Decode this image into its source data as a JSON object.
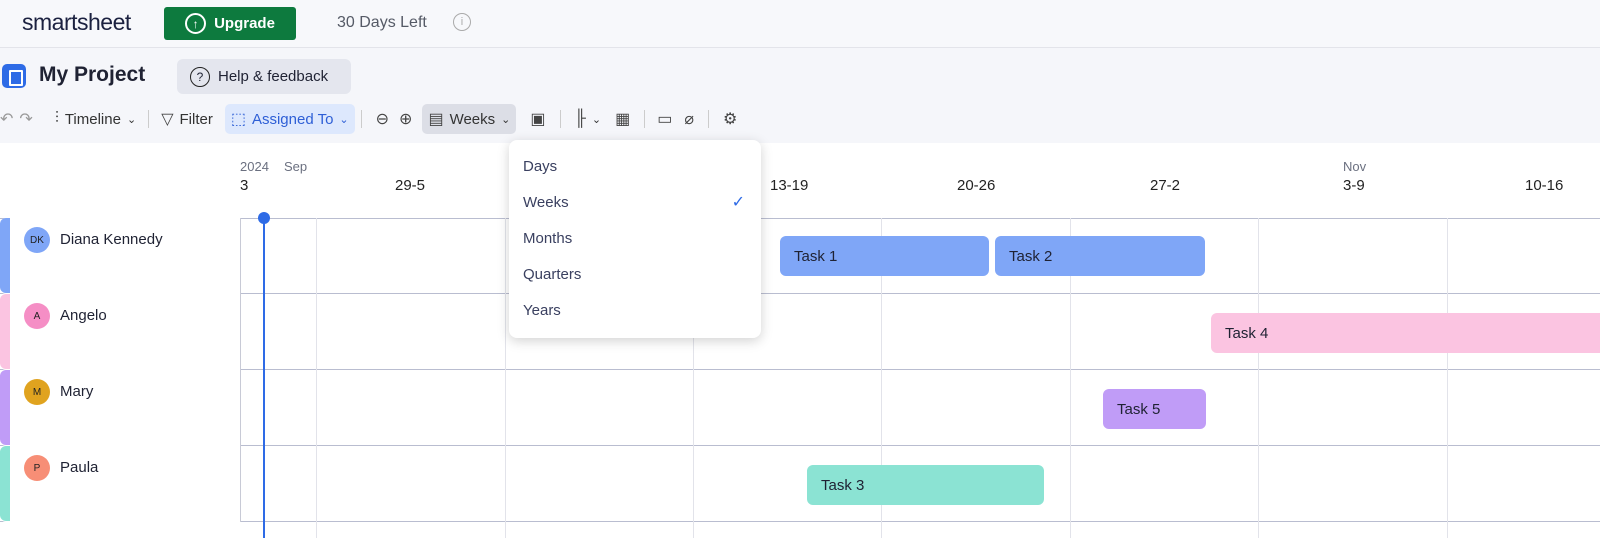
{
  "topbar": {
    "logo": "smartsheet",
    "upgrade": "Upgrade",
    "trial": "30 Days Left"
  },
  "project": {
    "title": "My Project",
    "help": "Help & feedback"
  },
  "toolbar": {
    "view": "Timeline",
    "filter": "Filter",
    "group": "Assigned To",
    "scale": "Weeks"
  },
  "timeline": {
    "year": "2024",
    "month_sep": "Sep",
    "month_nov": "Nov",
    "weeks": [
      "3",
      "29-5",
      "13-19",
      "20-26",
      "27-2",
      "3-9",
      "10-16"
    ]
  },
  "rows": [
    {
      "name": "Diana Kennedy",
      "initials": "DK",
      "color": "#7fa6f7"
    },
    {
      "name": "Angelo",
      "initials": "A",
      "color": "#f58ec5"
    },
    {
      "name": "Mary",
      "initials": "M",
      "color": "#e0a31f"
    },
    {
      "name": "Paula",
      "initials": "P",
      "color": "#f78e76"
    }
  ],
  "tasks": [
    {
      "label": "Task 1",
      "color": "#7fa6f7"
    },
    {
      "label": "Task 2",
      "color": "#7fa6f7"
    },
    {
      "label": "Task 4",
      "color": "#fbc4e1"
    },
    {
      "label": "Task 5",
      "color": "#c09cf7"
    },
    {
      "label": "Task 3",
      "color": "#8be3d3"
    }
  ],
  "dropdown": {
    "options": [
      "Days",
      "Weeks",
      "Months",
      "Quarters",
      "Years"
    ],
    "selected": "Weeks"
  }
}
